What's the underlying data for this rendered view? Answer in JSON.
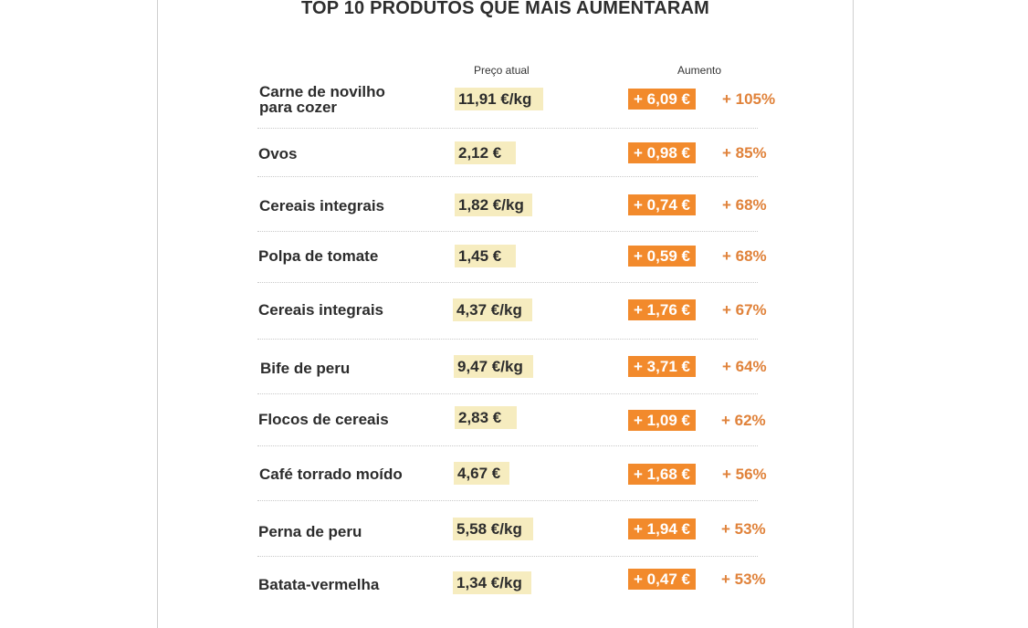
{
  "title": "TOP 10 PRODUTOS QUE MAIS AUMENTARAM",
  "columns": {
    "price": "Preço atual",
    "increase": "Aumento"
  },
  "rows": [
    {
      "name": "Carne de novilho\npara cozer",
      "price": "11,91 €/kg",
      "increase": "+ 6,09 €",
      "percent": "+ 105%"
    },
    {
      "name": "Ovos",
      "price": "2,12 €",
      "increase": "+ 0,98 €",
      "percent": "+ 85%"
    },
    {
      "name": "Cereais integrais",
      "price": "1,82 €/kg",
      "increase": "+ 0,74 €",
      "percent": "+ 68%"
    },
    {
      "name": "Polpa de tomate",
      "price": "1,45 €",
      "increase": "+ 0,59 €",
      "percent": "+ 68%"
    },
    {
      "name": "Cereais integrais",
      "price": "4,37 €/kg",
      "increase": "+ 1,76 €",
      "percent": "+ 67%"
    },
    {
      "name": "Bife de peru",
      "price": "9,47 €/kg",
      "increase": "+ 3,71 €",
      "percent": "+ 64%"
    },
    {
      "name": "Flocos de cereais",
      "price": "2,83 €",
      "increase": "+ 1,09 €",
      "percent": "+ 62%"
    },
    {
      "name": "Café torrado moído",
      "price": "4,67 €",
      "increase": "+ 1,68 €",
      "percent": "+ 56%"
    },
    {
      "name": "Perna de peru",
      "price": "5,58 €/kg",
      "increase": "+ 1,94 €",
      "percent": "+ 53%"
    },
    {
      "name": "Batata-vermelha",
      "price": "1,34 €/kg",
      "increase": "+ 0,47 €",
      "percent": "+ 53%"
    }
  ]
}
